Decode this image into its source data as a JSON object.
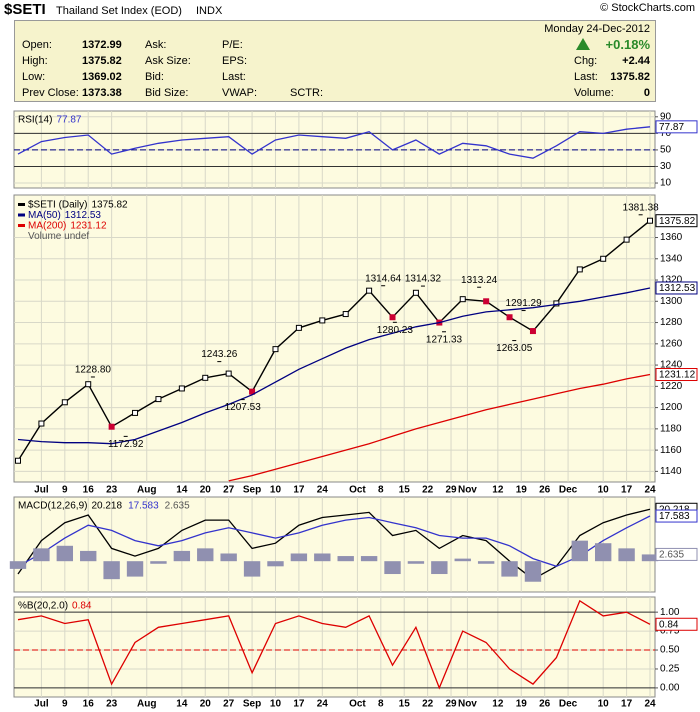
{
  "header": {
    "symbol": "$SETI",
    "name": "Thailand Set Index (EOD)",
    "exchange": "INDX",
    "copyright": "© StockCharts.com",
    "date": "Monday 24-Dec-2012",
    "change_pct": "+0.18%",
    "quote": [
      {
        "label": "Open:",
        "value": "1372.99"
      },
      {
        "label": "High:",
        "value": "1375.82"
      },
      {
        "label": "Low:",
        "value": "1369.02"
      },
      {
        "label": "Prev Close:",
        "value": "1373.38"
      }
    ],
    "fields": [
      "Ask:",
      "Ask Size:",
      "Bid:",
      "Bid Size:",
      "P/E:",
      "EPS:",
      "Last:",
      "VWAP:",
      "SCTR:"
    ],
    "right": [
      {
        "label": "Chg:",
        "value": "+2.44"
      },
      {
        "label": "Last:",
        "value": "1375.82"
      },
      {
        "label": "Volume:",
        "value": "0"
      }
    ]
  },
  "x_axis": {
    "xlim": [
      0,
      27
    ],
    "xticks": [
      {
        "value": 1,
        "label": "Jul"
      },
      {
        "value": 2,
        "label": "9"
      },
      {
        "value": 3,
        "label": "16"
      },
      {
        "value": 4,
        "label": "23"
      },
      {
        "value": 5.5,
        "label": "Aug"
      },
      {
        "value": 7,
        "label": "14"
      },
      {
        "value": 8,
        "label": "20"
      },
      {
        "value": 9,
        "label": "27"
      },
      {
        "value": 10,
        "label": "Sep"
      },
      {
        "value": 11,
        "label": "10"
      },
      {
        "value": 12,
        "label": "17"
      },
      {
        "value": 13,
        "label": "24"
      },
      {
        "value": 14.5,
        "label": "Oct"
      },
      {
        "value": 15.5,
        "label": "8"
      },
      {
        "value": 16.5,
        "label": "15"
      },
      {
        "value": 17.5,
        "label": "22"
      },
      {
        "value": 18.5,
        "label": "29"
      },
      {
        "value": 19.2,
        "label": "Nov"
      },
      {
        "value": 20.5,
        "label": "12"
      },
      {
        "value": 21.5,
        "label": "19"
      },
      {
        "value": 22.5,
        "label": "26"
      },
      {
        "value": 23.5,
        "label": "Dec"
      },
      {
        "value": 25,
        "label": "10"
      },
      {
        "value": 26,
        "label": "17"
      },
      {
        "value": 27,
        "label": "24"
      }
    ]
  },
  "chart_data": [
    {
      "type": "line",
      "title": "RSI(14)",
      "ylim": [
        4,
        97
      ],
      "yticks": [
        10,
        30,
        50,
        70,
        90
      ],
      "grid": true,
      "reference_lines": [
        30,
        70
      ],
      "center_line": 50,
      "center_line_color": "#000080",
      "series": [
        {
          "color": "#3333cc",
          "value_box": true,
          "values": [
            45,
            60,
            65,
            68,
            45,
            52,
            58,
            62,
            64,
            66,
            45,
            62,
            68,
            66,
            64,
            72,
            50,
            62,
            45,
            58,
            55,
            45,
            40,
            55,
            72,
            70,
            75,
            77.87
          ]
        }
      ]
    },
    {
      "type": "line",
      "legend": "stacked",
      "ylim": [
        1130,
        1400
      ],
      "yticks": [
        1140,
        1160,
        1180,
        1200,
        1220,
        1240,
        1260,
        1280,
        1300,
        1320,
        1340,
        1360
      ],
      "grid": true,
      "notes": [
        "Volume undef"
      ],
      "series": [
        {
          "name": "$SETI (Daily)",
          "color": "#000000",
          "value_box": true,
          "markers": true,
          "values": [
            1150,
            1185,
            1205,
            1222,
            1182,
            1195,
            1208,
            1218,
            1228,
            1232,
            1215,
            1255,
            1275,
            1282,
            1288,
            1310,
            1285,
            1308,
            1280,
            1302,
            1300,
            1285,
            1272,
            1298,
            1330,
            1340,
            1358,
            1375.82
          ]
        },
        {
          "name": "MA(50)",
          "color": "#000080",
          "value_box": true,
          "values": [
            1170,
            1168,
            1167,
            1167,
            1166,
            1170,
            1178,
            1186,
            1195,
            1203,
            1212,
            1224,
            1236,
            1246,
            1256,
            1264,
            1270,
            1276,
            1280,
            1286,
            1290,
            1292,
            1294,
            1297,
            1300,
            1304,
            1308,
            1312.53
          ]
        },
        {
          "name": "MA(200)",
          "color": "#dd0000",
          "value_box": true,
          "values": [
            null,
            null,
            null,
            null,
            null,
            null,
            null,
            null,
            null,
            1131,
            1136,
            1142,
            1148,
            1154,
            1160,
            1166,
            1173,
            1180,
            1186,
            1192,
            1198,
            1203,
            1208,
            1213,
            1218,
            1222,
            1227,
            1231.12
          ]
        }
      ],
      "annotations": [
        {
          "value": 1228.8,
          "label": "1228.80",
          "x": 3.2
        },
        {
          "value": 1172.92,
          "label": "1172.92",
          "x": 4.6
        },
        {
          "value": 1243.26,
          "label": "1243.26",
          "x": 8.6
        },
        {
          "value": 1207.53,
          "label": "1207.53",
          "x": 9.6
        },
        {
          "value": 1314.64,
          "label": "1314.64",
          "x": 15.6
        },
        {
          "value": 1280.23,
          "label": "1280.23",
          "x": 16.1
        },
        {
          "value": 1314.32,
          "label": "1314.32",
          "x": 17.3
        },
        {
          "value": 1271.33,
          "label": "1271.33",
          "x": 18.2
        },
        {
          "value": 1313.24,
          "label": "1313.24",
          "x": 19.7
        },
        {
          "value": 1291.29,
          "label": "1291.29",
          "x": 21.6
        },
        {
          "value": 1263.05,
          "label": "1263.05",
          "x": 21.2
        },
        {
          "value": 1381.38,
          "label": "1381.38",
          "x": 26.6
        }
      ]
    },
    {
      "type": "line",
      "title": "MACD(12,26,9)",
      "ylim": [
        -12,
        25
      ],
      "grid": true,
      "series": [
        {
          "color": "#000000",
          "value_box": true,
          "values": [
            -5,
            8,
            15,
            18,
            5,
            2,
            5,
            12,
            16,
            16,
            5,
            7,
            14,
            17,
            18,
            19,
            10,
            12,
            5,
            10,
            8,
            0,
            -7,
            -2,
            10,
            15,
            18,
            20.218
          ]
        },
        {
          "color": "#3333cc",
          "value_box": true,
          "values": [
            -2,
            3,
            9,
            14,
            12,
            8,
            6,
            8,
            11,
            13,
            11,
            9,
            11,
            14,
            16,
            17,
            15,
            13,
            10,
            9,
            9,
            6,
            1,
            -2,
            2,
            8,
            13,
            17.583
          ]
        },
        {
          "color": "#9090b0",
          "style": "bar",
          "value_box": true,
          "values": [
            -3,
            5,
            6,
            4,
            -7,
            -6,
            -1,
            4,
            5,
            3,
            -6,
            -2,
            3,
            3,
            2,
            2,
            -5,
            -1,
            -5,
            1,
            -1,
            -6,
            -8,
            0,
            8,
            7,
            5,
            2.635
          ]
        }
      ]
    },
    {
      "type": "line",
      "title": "%B(20,2.0)",
      "ylim": [
        -0.12,
        1.2
      ],
      "yticks": [
        {
          "value": 0,
          "label": "0.00"
        },
        {
          "value": 0.25,
          "label": "0.25"
        },
        {
          "value": 0.5,
          "label": "0.50"
        },
        {
          "value": 0.75,
          "label": "0.75"
        },
        {
          "value": 1,
          "label": "1.00"
        }
      ],
      "grid": true,
      "reference_lines": [
        0,
        1
      ],
      "center_line": 0.5,
      "center_line_color": "#dd0000",
      "series": [
        {
          "color": "#dd0000",
          "value_box": true,
          "values": [
            0.9,
            0.95,
            0.85,
            0.9,
            0.05,
            0.6,
            0.8,
            0.85,
            0.9,
            0.95,
            0.2,
            0.85,
            0.95,
            0.85,
            0.8,
            0.95,
            0.3,
            0.8,
            0,
            0.75,
            0.6,
            0.25,
            0.05,
            0.4,
            1.15,
            0.95,
            1,
            0.84
          ]
        }
      ]
    }
  ]
}
